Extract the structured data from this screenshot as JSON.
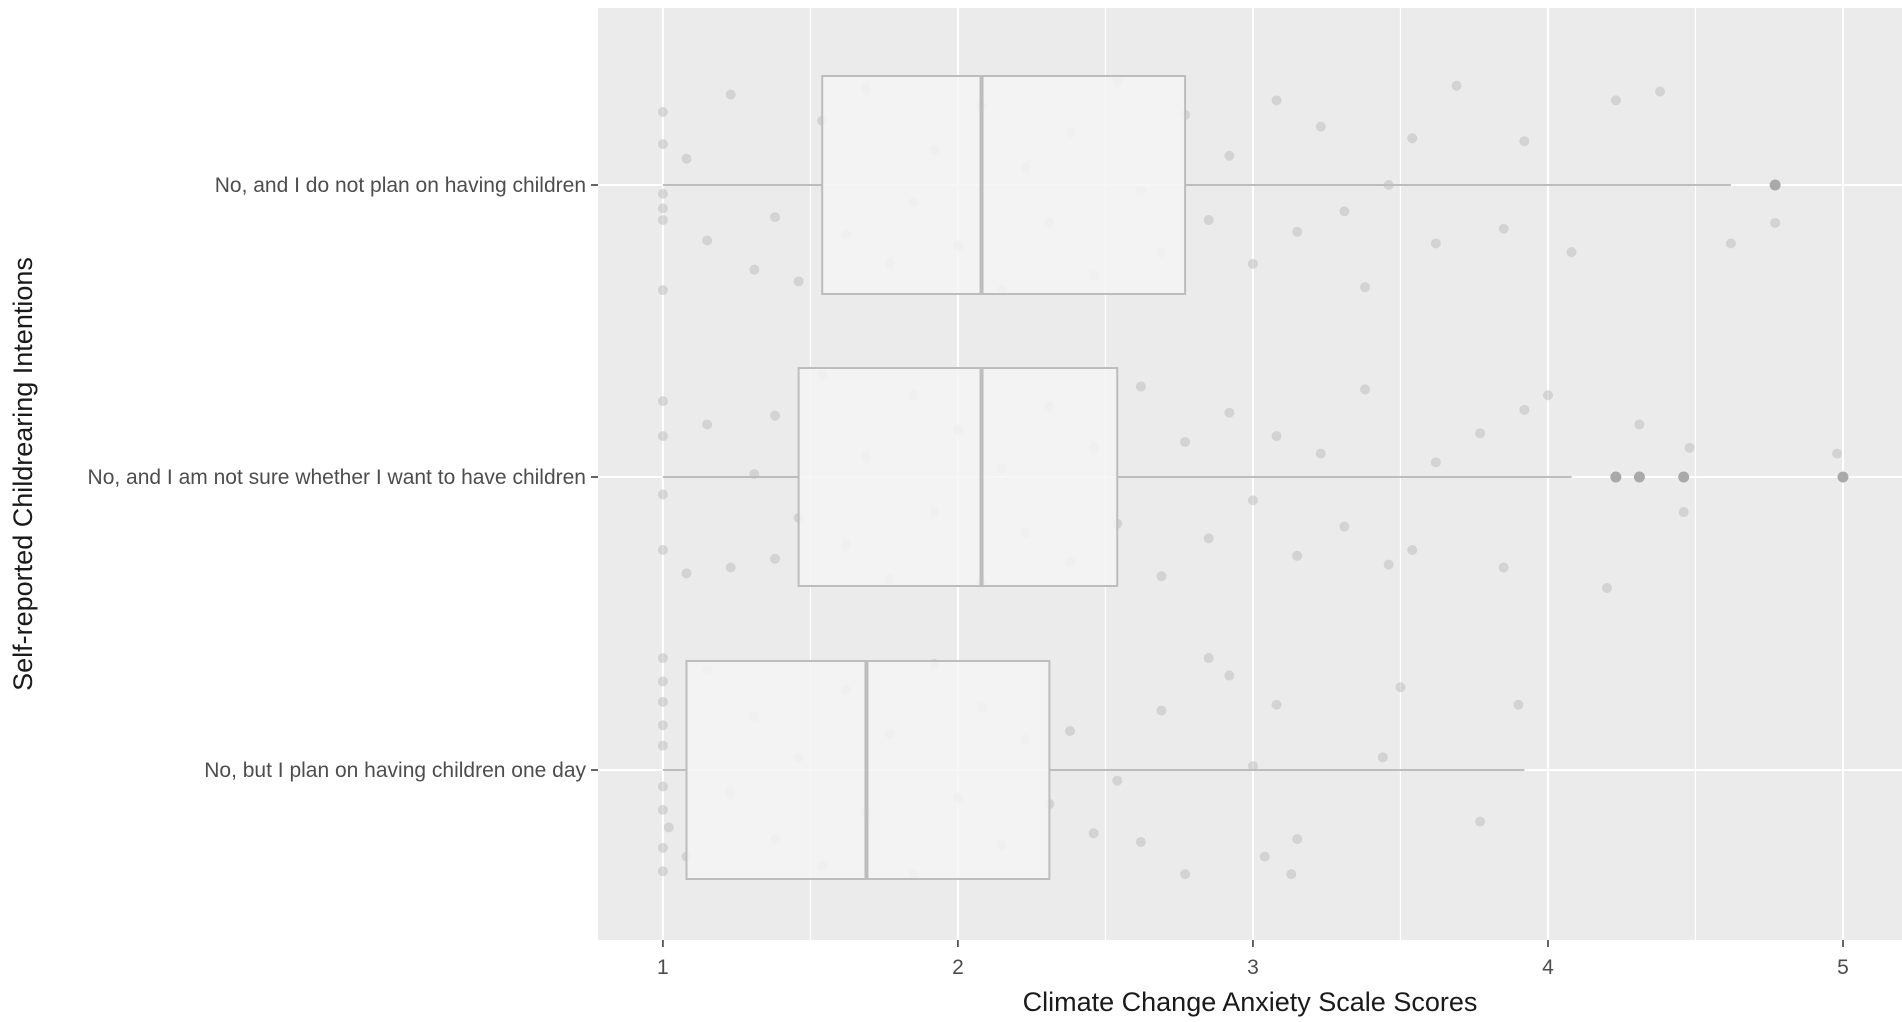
{
  "chart_data": {
    "type": "boxplot",
    "orientation": "horizontal",
    "title": "",
    "xlabel": "Climate Change Anxiety Scale Scores",
    "ylabel": "Self-reported Childrearing Intentions",
    "xlim": [
      0.78,
      5.2
    ],
    "xticks": [
      1,
      2,
      3,
      4,
      5
    ],
    "xtick_labels": [
      "1",
      "2",
      "3",
      "4",
      "5"
    ],
    "grid": true,
    "panel_background": "#ebebeb",
    "grid_color": "#ffffff",
    "box_fill": "#f5f5f5",
    "box_line": "#bdbdbd",
    "point_color": "#bfbfbf",
    "categories": [
      "No, and I do not plan on having children",
      "No, and I am not sure whether I want to have children",
      "No, but I plan on having children one day"
    ],
    "boxes": [
      {
        "category": "No, and I do not plan on having children",
        "whisker_low": 1.0,
        "q1": 1.54,
        "median": 2.08,
        "q3": 2.77,
        "whisker_high": 4.62,
        "outliers": [
          4.77
        ]
      },
      {
        "category": "No, and I am not sure whether I want to have children",
        "whisker_low": 1.0,
        "q1": 1.46,
        "median": 2.08,
        "q3": 2.54,
        "whisker_high": 4.08,
        "outliers": [
          4.23,
          4.31,
          4.46,
          5.0
        ]
      },
      {
        "category": "No, but I plan on having children one day",
        "whisker_low": 1.0,
        "q1": 1.08,
        "median": 1.69,
        "q3": 2.31,
        "whisker_high": 3.92,
        "outliers": []
      }
    ],
    "jitter_points": [
      {
        "x": 1.0,
        "y": 0.03
      },
      {
        "x": 1.0,
        "y": -0.25
      },
      {
        "x": 1.0,
        "y": 0.36
      },
      {
        "x": 1.0,
        "y": -0.14
      },
      {
        "x": 1.0,
        "y": 0.12
      },
      {
        "x": 1.08,
        "y": -0.09
      },
      {
        "x": 1.0,
        "y": 0.08
      },
      {
        "x": 1.15,
        "y": 0.19
      },
      {
        "x": 1.23,
        "y": -0.31
      },
      {
        "x": 1.31,
        "y": 0.29
      },
      {
        "x": 1.38,
        "y": 0.11
      },
      {
        "x": 1.46,
        "y": 0.33
      },
      {
        "x": 1.54,
        "y": -0.22
      },
      {
        "x": 1.62,
        "y": 0.17
      },
      {
        "x": 1.69,
        "y": -0.33
      },
      {
        "x": 1.77,
        "y": 0.27
      },
      {
        "x": 1.85,
        "y": 0.06
      },
      {
        "x": 1.92,
        "y": -0.12
      },
      {
        "x": 2.0,
        "y": 0.21
      },
      {
        "x": 2.08,
        "y": -0.27
      },
      {
        "x": 2.15,
        "y": 0.36
      },
      {
        "x": 2.23,
        "y": -0.06
      },
      {
        "x": 2.31,
        "y": 0.13
      },
      {
        "x": 2.38,
        "y": -0.18
      },
      {
        "x": 2.46,
        "y": 0.31
      },
      {
        "x": 2.54,
        "y": -0.36
      },
      {
        "x": 2.62,
        "y": 0.02
      },
      {
        "x": 2.69,
        "y": 0.23
      },
      {
        "x": 2.77,
        "y": -0.24
      },
      {
        "x": 2.85,
        "y": 0.12
      },
      {
        "x": 2.92,
        "y": -0.1
      },
      {
        "x": 3.0,
        "y": 0.27
      },
      {
        "x": 3.08,
        "y": -0.29
      },
      {
        "x": 3.15,
        "y": 0.16
      },
      {
        "x": 3.23,
        "y": -0.2
      },
      {
        "x": 3.31,
        "y": 0.09
      },
      {
        "x": 3.38,
        "y": 0.35
      },
      {
        "x": 3.46,
        "y": 0.0
      },
      {
        "x": 3.54,
        "y": -0.16
      },
      {
        "x": 3.62,
        "y": 0.2
      },
      {
        "x": 3.69,
        "y": -0.34
      },
      {
        "x": 3.85,
        "y": 0.15
      },
      {
        "x": 3.92,
        "y": -0.15
      },
      {
        "x": 4.08,
        "y": 0.23
      },
      {
        "x": 4.23,
        "y": -0.29
      },
      {
        "x": 4.38,
        "y": -0.32
      },
      {
        "x": 4.62,
        "y": 0.2
      },
      {
        "x": 4.77,
        "y": 0.13
      },
      {
        "x": 1.0,
        "y": 0.86
      },
      {
        "x": 1.0,
        "y": 1.25
      },
      {
        "x": 1.0,
        "y": 0.74
      },
      {
        "x": 1.08,
        "y": 1.33
      },
      {
        "x": 1.0,
        "y": 1.06
      },
      {
        "x": 1.15,
        "y": 0.82
      },
      {
        "x": 1.23,
        "y": 1.31
      },
      {
        "x": 1.31,
        "y": 0.99
      },
      {
        "x": 1.38,
        "y": 1.28
      },
      {
        "x": 1.38,
        "y": 0.79
      },
      {
        "x": 1.46,
        "y": 1.14
      },
      {
        "x": 1.54,
        "y": 0.65
      },
      {
        "x": 1.62,
        "y": 1.23
      },
      {
        "x": 1.69,
        "y": 0.93
      },
      {
        "x": 1.77,
        "y": 1.35
      },
      {
        "x": 1.85,
        "y": 0.72
      },
      {
        "x": 1.92,
        "y": 1.12
      },
      {
        "x": 2.0,
        "y": 0.84
      },
      {
        "x": 2.08,
        "y": 1.36
      },
      {
        "x": 2.15,
        "y": 0.97
      },
      {
        "x": 2.23,
        "y": 1.19
      },
      {
        "x": 2.31,
        "y": 0.76
      },
      {
        "x": 2.38,
        "y": 1.29
      },
      {
        "x": 2.46,
        "y": 0.9
      },
      {
        "x": 2.54,
        "y": 1.16
      },
      {
        "x": 2.62,
        "y": 0.69
      },
      {
        "x": 2.69,
        "y": 1.34
      },
      {
        "x": 2.77,
        "y": 0.88
      },
      {
        "x": 2.85,
        "y": 1.21
      },
      {
        "x": 2.92,
        "y": 0.78
      },
      {
        "x": 3.0,
        "y": 1.08
      },
      {
        "x": 3.08,
        "y": 0.86
      },
      {
        "x": 3.15,
        "y": 1.27
      },
      {
        "x": 3.23,
        "y": 0.92
      },
      {
        "x": 3.31,
        "y": 1.17
      },
      {
        "x": 3.38,
        "y": 0.7
      },
      {
        "x": 3.46,
        "y": 1.3
      },
      {
        "x": 3.54,
        "y": 1.25
      },
      {
        "x": 3.62,
        "y": 0.95
      },
      {
        "x": 3.77,
        "y": 0.85
      },
      {
        "x": 3.85,
        "y": 1.31
      },
      {
        "x": 3.92,
        "y": 0.77
      },
      {
        "x": 4.0,
        "y": 0.72
      },
      {
        "x": 4.2,
        "y": 1.38
      },
      {
        "x": 4.31,
        "y": 0.82
      },
      {
        "x": 4.46,
        "y": 1.12
      },
      {
        "x": 4.48,
        "y": 0.9
      },
      {
        "x": 4.98,
        "y": 0.92
      },
      {
        "x": 1.0,
        "y": 1.62
      },
      {
        "x": 1.0,
        "y": 2.35
      },
      {
        "x": 1.0,
        "y": 1.85
      },
      {
        "x": 1.0,
        "y": 2.14
      },
      {
        "x": 1.0,
        "y": 1.7
      },
      {
        "x": 1.0,
        "y": 2.27
      },
      {
        "x": 1.0,
        "y": 2.06
      },
      {
        "x": 1.0,
        "y": 1.77
      },
      {
        "x": 1.02,
        "y": 2.2
      },
      {
        "x": 1.0,
        "y": 1.92
      },
      {
        "x": 1.08,
        "y": 2.3
      },
      {
        "x": 1.15,
        "y": 1.66
      },
      {
        "x": 1.23,
        "y": 2.08
      },
      {
        "x": 1.31,
        "y": 1.82
      },
      {
        "x": 1.38,
        "y": 2.24
      },
      {
        "x": 1.46,
        "y": 1.96
      },
      {
        "x": 1.54,
        "y": 2.33
      },
      {
        "x": 1.62,
        "y": 1.73
      },
      {
        "x": 1.69,
        "y": 2.15
      },
      {
        "x": 1.77,
        "y": 1.88
      },
      {
        "x": 1.85,
        "y": 2.36
      },
      {
        "x": 1.92,
        "y": 1.64
      },
      {
        "x": 2.0,
        "y": 2.1
      },
      {
        "x": 2.08,
        "y": 1.79
      },
      {
        "x": 2.15,
        "y": 2.26
      },
      {
        "x": 2.23,
        "y": 1.9
      },
      {
        "x": 2.31,
        "y": 2.12
      },
      {
        "x": 2.38,
        "y": 1.87
      },
      {
        "x": 2.46,
        "y": 2.22
      },
      {
        "x": 2.54,
        "y": 2.04
      },
      {
        "x": 2.62,
        "y": 2.25
      },
      {
        "x": 2.69,
        "y": 1.8
      },
      {
        "x": 2.77,
        "y": 2.36
      },
      {
        "x": 2.85,
        "y": 1.62
      },
      {
        "x": 2.92,
        "y": 1.68
      },
      {
        "x": 3.0,
        "y": 1.99
      },
      {
        "x": 3.04,
        "y": 2.3
      },
      {
        "x": 3.08,
        "y": 1.78
      },
      {
        "x": 3.15,
        "y": 2.24
      },
      {
        "x": 3.13,
        "y": 2.36
      },
      {
        "x": 3.44,
        "y": 1.96
      },
      {
        "x": 3.5,
        "y": 1.72
      },
      {
        "x": 3.77,
        "y": 2.18
      },
      {
        "x": 3.9,
        "y": 1.78
      }
    ]
  },
  "axes": {
    "y_title": "Self-reported Childrearing Intentions",
    "x_title": "Climate Change Anxiety Scale Scores"
  }
}
